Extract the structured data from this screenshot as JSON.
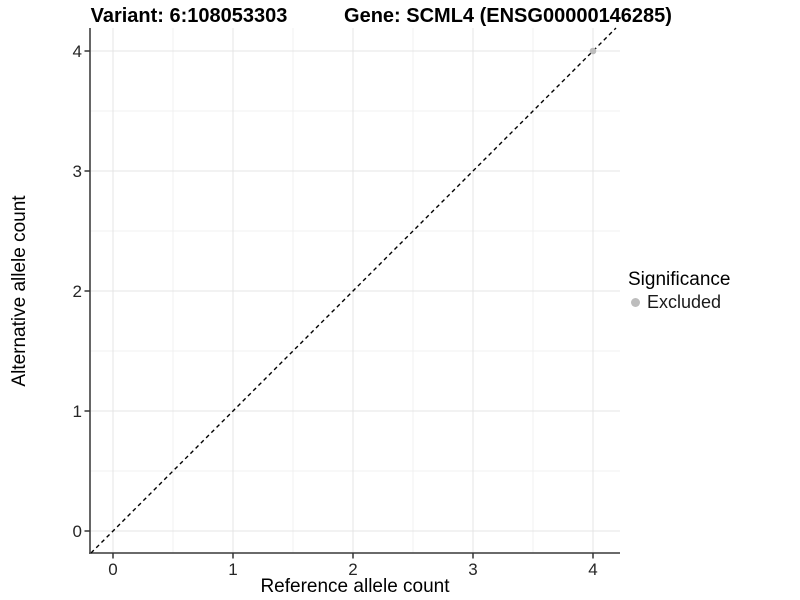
{
  "chart_data": {
    "type": "scatter",
    "title_left": "Variant: 6:108053303",
    "title_right": "Gene: SCML4 (ENSG00000146285)",
    "xlabel": "Reference allele count",
    "ylabel": "Alternative allele count",
    "x_ticks": [
      0,
      1,
      2,
      3,
      4
    ],
    "y_ticks": [
      0,
      1,
      2,
      3,
      4
    ],
    "x_minor_ticks": [
      0.5,
      1.5,
      2.5,
      3.5
    ],
    "y_minor_ticks": [
      0.5,
      1.5,
      2.5,
      3.5
    ],
    "xlim": [
      -0.19,
      4.23
    ],
    "ylim": [
      -0.18,
      4.19
    ],
    "grid": "on",
    "identity_line": {
      "slope": 1,
      "intercept": 0,
      "style": "dashed",
      "color": "#000000"
    },
    "series": [
      {
        "name": "Excluded",
        "color": "#bdbdbd",
        "points": [
          [
            4,
            4
          ]
        ]
      }
    ],
    "legend": {
      "title": "Significance",
      "position": "right",
      "items": [
        {
          "label": "Excluded",
          "color": "#bdbdbd"
        }
      ]
    },
    "colors": {
      "grid_major": "#e4e4e4",
      "grid_minor": "#f1f1f1",
      "axis_line": "#555555",
      "tick_mark": "#333333",
      "tick_label": "#262626"
    }
  }
}
